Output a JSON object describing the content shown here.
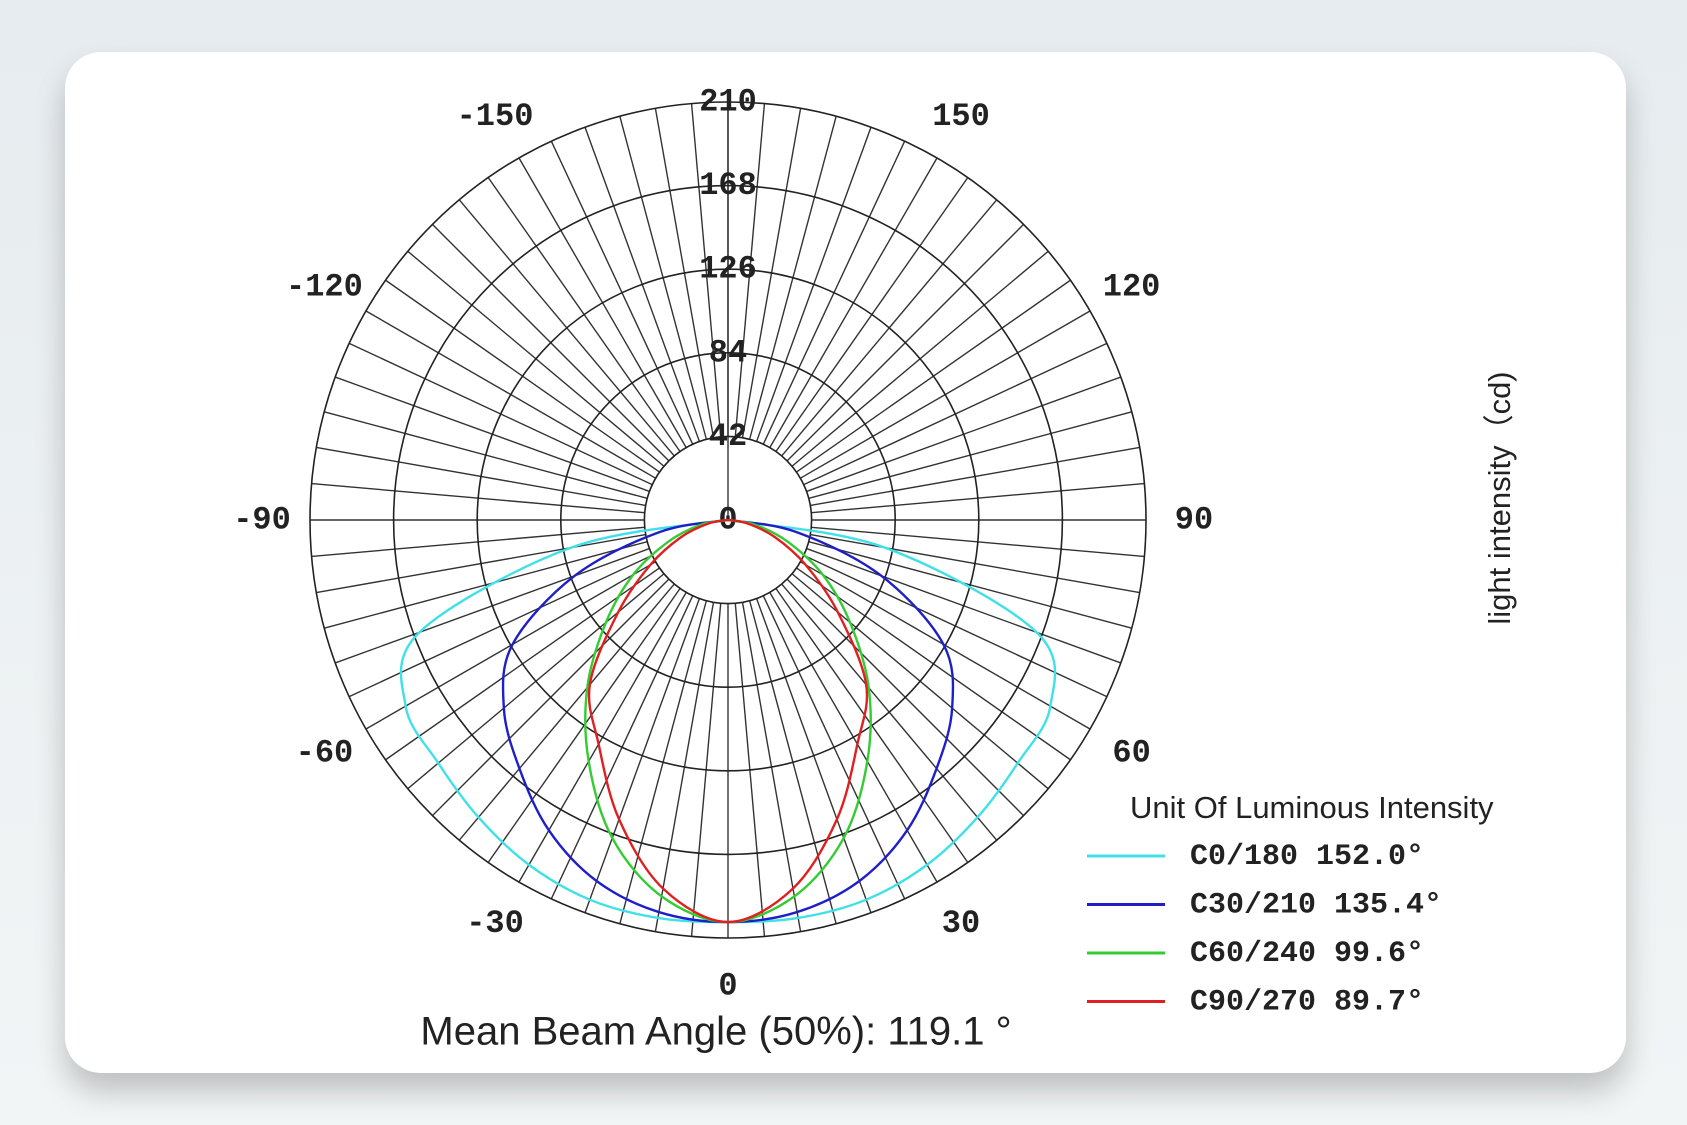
{
  "chart_data": {
    "type": "polar",
    "rlim": [
      0,
      210
    ],
    "rticks": [
      0,
      42,
      84,
      126,
      168,
      210
    ],
    "angle_ticks": [
      0,
      30,
      60,
      90,
      120,
      150,
      -30,
      -60,
      -90,
      -120,
      -150
    ],
    "r_label": "light intensity（cd)",
    "legend_title": "Unit Of Luminous Intensity",
    "annotation": "Mean Beam Angle (50%): 119.1 °",
    "x": [
      -90,
      -80,
      -70,
      -60,
      -50,
      -40,
      -30,
      -20,
      -10,
      0,
      10,
      20,
      30,
      40,
      50,
      60,
      70,
      80,
      90
    ],
    "series": [
      {
        "name": "C0/180 152.0°",
        "color": "#3fe0e8",
        "values": [
          0,
          80,
          165,
          187,
          190,
          195,
          200,
          203,
          203,
          202,
          203,
          203,
          200,
          195,
          190,
          187,
          165,
          80,
          0
        ]
      },
      {
        "name": "C30/210 135.4°",
        "color": "#1f1fc8",
        "values": [
          0,
          35,
          82,
          125,
          147,
          163,
          180,
          193,
          200,
          202,
          200,
          193,
          180,
          163,
          147,
          125,
          82,
          35,
          0
        ]
      },
      {
        "name": "C60/240 99.6°",
        "color": "#33cc33",
        "values": [
          0,
          14,
          32,
          55,
          80,
          110,
          140,
          170,
          192,
          202,
          192,
          170,
          140,
          110,
          80,
          55,
          32,
          14,
          0
        ]
      },
      {
        "name": "C90/270 89.7°",
        "color": "#e02020",
        "values": [
          0,
          10,
          25,
          45,
          72,
          108,
          130,
          160,
          188,
          202,
          188,
          160,
          130,
          108,
          72,
          45,
          25,
          10,
          0
        ]
      }
    ]
  }
}
